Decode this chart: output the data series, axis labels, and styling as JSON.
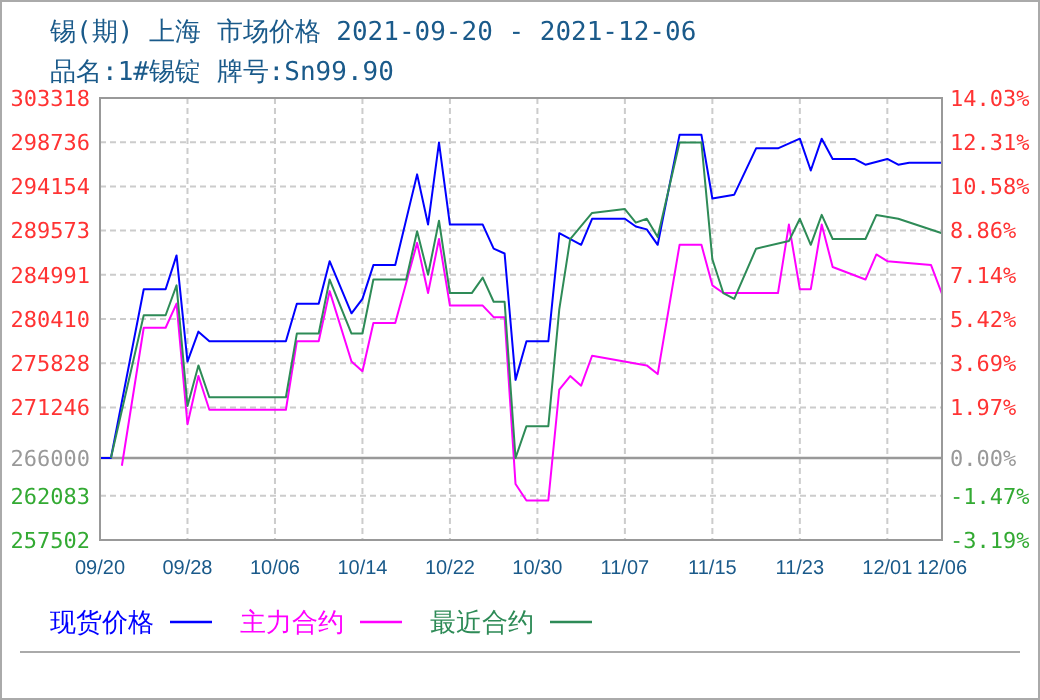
{
  "chart_data": {
    "type": "line",
    "title": "锡(期) 上海 市场价格 2021-09-20 - 2021-12-06",
    "subtitle": "品名:1#锡锭 牌号:Sn99.90",
    "xlim": [
      "2021-09-20",
      "2021-12-06"
    ],
    "xticks": [
      {
        "value": "2021-09-20",
        "label": "09/20"
      },
      {
        "value": "2021-09-28",
        "label": "09/28"
      },
      {
        "value": "2021-10-06",
        "label": "10/06"
      },
      {
        "value": "2021-10-14",
        "label": "10/14"
      },
      {
        "value": "2021-10-22",
        "label": "10/22"
      },
      {
        "value": "2021-10-30",
        "label": "10/30"
      },
      {
        "value": "2021-11-07",
        "label": "11/07"
      },
      {
        "value": "2021-11-15",
        "label": "11/15"
      },
      {
        "value": "2021-11-23",
        "label": "11/23"
      },
      {
        "value": "2021-12-01",
        "label": "12/01"
      },
      {
        "value": "2021-12-06",
        "label": "12/06"
      }
    ],
    "ylim": [
      257502,
      303318
    ],
    "yticks": [
      257502,
      262083,
      266000,
      271246,
      275828,
      280410,
      284991,
      289573,
      294154,
      298736,
      303318
    ],
    "y2lim": [
      -3.19,
      14.03
    ],
    "y2ticks": [
      {
        "value": -3.19,
        "label": "-3.19%"
      },
      {
        "value": -1.47,
        "label": "-1.47%"
      },
      {
        "value": 0,
        "label": "0.00%"
      },
      {
        "value": 1.97,
        "label": "1.97%"
      },
      {
        "value": 3.69,
        "label": "3.69%"
      },
      {
        "value": 5.42,
        "label": "5.42%"
      },
      {
        "value": 7.14,
        "label": "7.14%"
      },
      {
        "value": 8.86,
        "label": "8.86%"
      },
      {
        "value": 10.58,
        "label": "10.58%"
      },
      {
        "value": 12.31,
        "label": "12.31%"
      },
      {
        "value": 14.03,
        "label": "14.03%"
      }
    ],
    "ref_lines": [
      {
        "axis": "y",
        "value": 266000,
        "color": "#999999"
      }
    ],
    "grid": true,
    "legend": "bottom",
    "series": [
      {
        "name": "现货价格",
        "color": "#0000ff",
        "x": [
          "2021-09-20",
          "2021-09-21",
          "2021-09-24",
          "2021-09-26",
          "2021-09-27",
          "2021-09-28",
          "2021-09-29",
          "2021-09-30",
          "2021-10-07",
          "2021-10-08",
          "2021-10-10",
          "2021-10-11",
          "2021-10-13",
          "2021-10-14",
          "2021-10-15",
          "2021-10-17",
          "2021-10-19",
          "2021-10-20",
          "2021-10-21",
          "2021-10-22",
          "2021-10-25",
          "2021-10-26",
          "2021-10-27",
          "2021-10-28",
          "2021-10-29",
          "2021-10-31",
          "2021-11-01",
          "2021-11-03",
          "2021-11-04",
          "2021-11-07",
          "2021-11-08",
          "2021-11-09",
          "2021-11-10",
          "2021-11-12",
          "2021-11-14",
          "2021-11-15",
          "2021-11-17",
          "2021-11-19",
          "2021-11-21",
          "2021-11-23",
          "2021-11-24",
          "2021-11-25",
          "2021-11-26",
          "2021-11-28",
          "2021-11-29",
          "2021-12-01",
          "2021-12-02",
          "2021-12-03",
          "2021-12-06"
        ],
        "values": [
          266000,
          266000,
          283500,
          283500,
          287000,
          276000,
          279100,
          278100,
          278100,
          282000,
          282000,
          286400,
          281000,
          282500,
          286000,
          286000,
          295400,
          290200,
          298700,
          290200,
          290200,
          287700,
          287200,
          274100,
          278100,
          278100,
          289300,
          288100,
          290800,
          290800,
          290000,
          289700,
          288100,
          299500,
          299500,
          292900,
          293300,
          298100,
          298100,
          299100,
          295800,
          299100,
          297000,
          297000,
          296400,
          297000,
          296400,
          296600,
          296600
        ]
      },
      {
        "name": "主力合约",
        "color": "#ff00ff",
        "x": [
          "2021-09-22",
          "2021-09-24",
          "2021-09-26",
          "2021-09-27",
          "2021-09-28",
          "2021-09-29",
          "2021-09-30",
          "2021-10-07",
          "2021-10-08",
          "2021-10-10",
          "2021-10-11",
          "2021-10-13",
          "2021-10-14",
          "2021-10-15",
          "2021-10-17",
          "2021-10-19",
          "2021-10-20",
          "2021-10-21",
          "2021-10-22",
          "2021-10-25",
          "2021-10-26",
          "2021-10-27",
          "2021-10-28",
          "2021-10-29",
          "2021-10-31",
          "2021-11-01",
          "2021-11-02",
          "2021-11-03",
          "2021-11-04",
          "2021-11-09",
          "2021-11-10",
          "2021-11-12",
          "2021-11-14",
          "2021-11-15",
          "2021-11-16",
          "2021-11-21",
          "2021-11-22",
          "2021-11-23",
          "2021-11-24",
          "2021-11-25",
          "2021-11-26",
          "2021-11-29",
          "2021-11-30",
          "2021-12-01",
          "2021-12-05",
          "2021-12-06"
        ],
        "values": [
          265200,
          279500,
          279500,
          282000,
          269500,
          274500,
          271000,
          271000,
          278100,
          278100,
          283300,
          276000,
          275000,
          280000,
          280000,
          288300,
          283100,
          288700,
          281800,
          281800,
          280600,
          280600,
          263300,
          261600,
          261600,
          273100,
          274500,
          273500,
          276600,
          275600,
          274700,
          288100,
          288100,
          283900,
          283100,
          283100,
          290200,
          283500,
          283500,
          290200,
          285800,
          284500,
          287100,
          286400,
          286000,
          283000
        ]
      },
      {
        "name": "最近合约",
        "color": "#2e8b57",
        "x": [
          "2021-09-21",
          "2021-09-24",
          "2021-09-26",
          "2021-09-27",
          "2021-09-28",
          "2021-09-29",
          "2021-09-30",
          "2021-10-07",
          "2021-10-08",
          "2021-10-10",
          "2021-10-11",
          "2021-10-13",
          "2021-10-14",
          "2021-10-15",
          "2021-10-18",
          "2021-10-19",
          "2021-10-20",
          "2021-10-21",
          "2021-10-22",
          "2021-10-24",
          "2021-10-25",
          "2021-10-26",
          "2021-10-27",
          "2021-10-28",
          "2021-10-29",
          "2021-10-31",
          "2021-11-01",
          "2021-11-02",
          "2021-11-04",
          "2021-11-07",
          "2021-11-08",
          "2021-11-09",
          "2021-11-10",
          "2021-11-12",
          "2021-11-14",
          "2021-11-15",
          "2021-11-16",
          "2021-11-17",
          "2021-11-19",
          "2021-11-22",
          "2021-11-23",
          "2021-11-24",
          "2021-11-25",
          "2021-11-26",
          "2021-11-29",
          "2021-11-30",
          "2021-12-02",
          "2021-12-06"
        ],
        "values": [
          266000,
          280800,
          280800,
          283900,
          271400,
          275600,
          272300,
          272300,
          278900,
          278900,
          284500,
          278900,
          278900,
          284500,
          284500,
          289500,
          285000,
          290600,
          283100,
          283100,
          284700,
          282200,
          282200,
          266000,
          269300,
          269300,
          281400,
          288700,
          291400,
          291800,
          290400,
          290800,
          288900,
          298700,
          298700,
          286600,
          283100,
          282500,
          287700,
          288500,
          290800,
          288100,
          291200,
          288700,
          288700,
          291200,
          290800,
          289300
        ]
      }
    ]
  }
}
